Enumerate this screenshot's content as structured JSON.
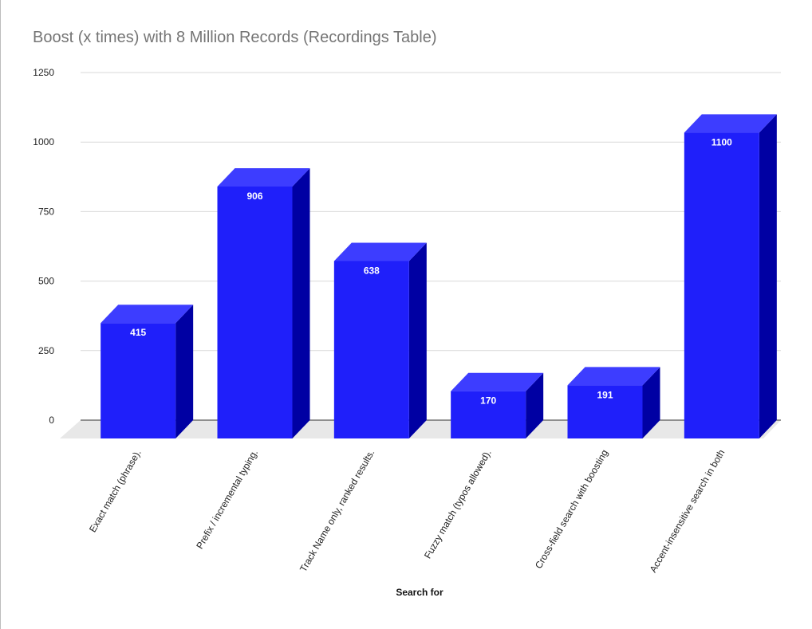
{
  "chart_data": {
    "type": "bar",
    "title": "Boost (x times) with 8 Million Records (Recordings Table)",
    "xlabel": "Search for",
    "ylabel": "",
    "categories": [
      "Exact match (phrase).",
      "Prefix / incremental typing.",
      "Track Name only, ranked results.",
      "Fuzzy match (typos allowed).",
      "Cross-field search with boosting",
      "Accent-insensitive search in both"
    ],
    "values": [
      415,
      906,
      638,
      170,
      191,
      1100
    ],
    "ylim": [
      0,
      1250
    ],
    "yticks": [
      0,
      250,
      500,
      750,
      1000,
      1250
    ],
    "grid": true,
    "style": "3d",
    "colors": {
      "front": "#1f1ffa",
      "top": "#3d3dff",
      "side": "#0000a3",
      "floor": "#e8e8e8",
      "grid": "#d9d9d9"
    }
  }
}
